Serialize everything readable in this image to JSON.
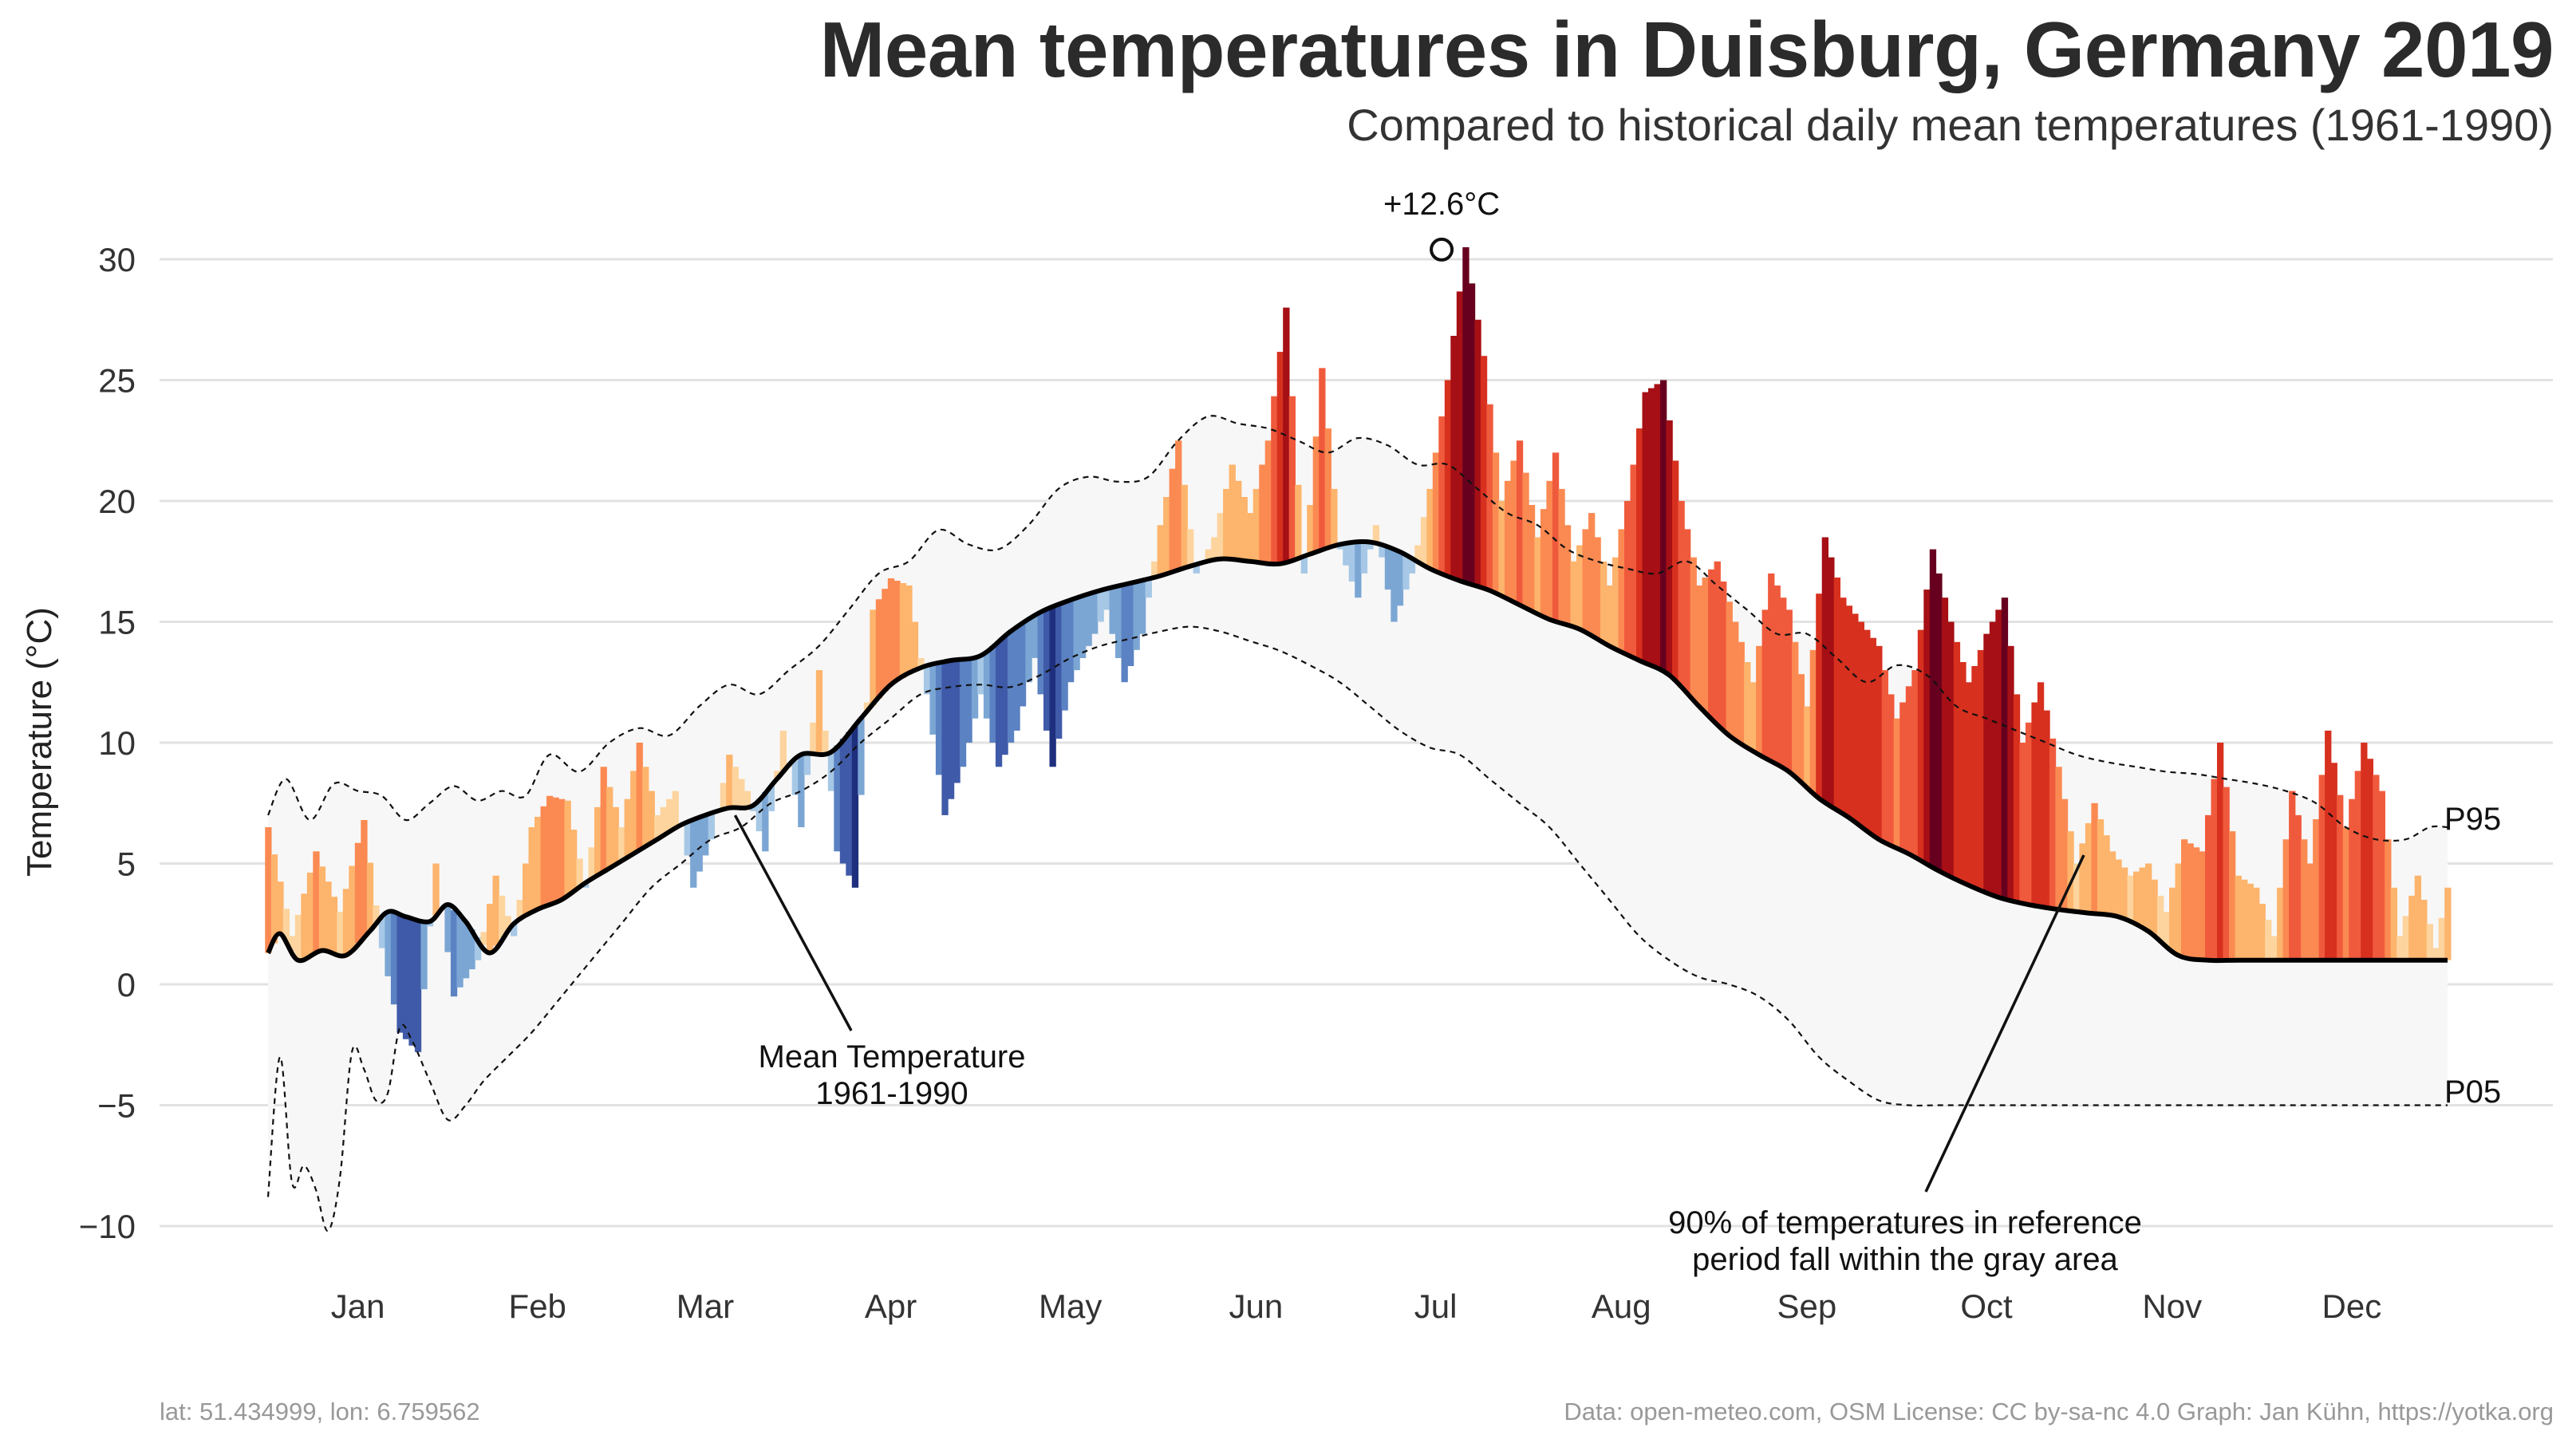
{
  "title": "Mean temperatures in Duisburg, Germany 2019",
  "subtitle": "Compared to historical daily mean temperatures (1961-1990)",
  "footer": {
    "location": "lat: 51.434999, lon: 6.759562",
    "credits": "Data: open-meteo.com, OSM  License: CC by-sa-nc 4.0  Graph: Jan Kühn, https://yotka.org"
  },
  "chart_data": {
    "type": "area",
    "ylabel": "Temperature (°C)",
    "ylim": [
      -10,
      32
    ],
    "yticks": [
      30,
      25,
      20,
      15,
      10,
      5,
      0,
      -5,
      -10
    ],
    "ytick_labels": [
      "30",
      "25",
      "20",
      "15",
      "10",
      "5",
      "0",
      "−5",
      "−10"
    ],
    "x_domain_days": [
      1,
      365
    ],
    "month_labels": [
      "Jan",
      "Feb",
      "Mar",
      "Apr",
      "May",
      "Jun",
      "Jul",
      "Aug",
      "Sep",
      "Oct",
      "Nov",
      "Dec"
    ],
    "month_label_days": [
      16,
      46,
      74,
      105,
      135,
      166,
      196,
      227,
      258,
      288,
      319,
      349
    ],
    "grid": true,
    "legend": "none",
    "series_2019_day": [
      1,
      5,
      9,
      13,
      17,
      20,
      23,
      26,
      29,
      32,
      36,
      39,
      42,
      45,
      48,
      51,
      54,
      57,
      60,
      63,
      66,
      69,
      72,
      75,
      78,
      81,
      84,
      87,
      90,
      93,
      96,
      99,
      102,
      105,
      108,
      111,
      114,
      117,
      120,
      123,
      126,
      129,
      132,
      135,
      138,
      141,
      144,
      147,
      150,
      153,
      156,
      159,
      162,
      165,
      168,
      171,
      174,
      177,
      180,
      183,
      186,
      189,
      192,
      195,
      198,
      201,
      204,
      207,
      210,
      213,
      216,
      219,
      222,
      225,
      228,
      231,
      234,
      237,
      240,
      243,
      246,
      249,
      252,
      255,
      258,
      261,
      264,
      267,
      270,
      273,
      276,
      279,
      282,
      285,
      288,
      291,
      294,
      297,
      300,
      303,
      306,
      309,
      312,
      315,
      318,
      321,
      324,
      327,
      330,
      333,
      336,
      339,
      342,
      345,
      348,
      351,
      354,
      357,
      360,
      363,
      365
    ],
    "series_2019_temp": [
      6.5,
      2.0,
      5.5,
      3.0,
      6.8,
      1.5,
      -2.0,
      -2.8,
      5.0,
      -0.5,
      1.0,
      4.5,
      2.0,
      6.5,
      7.8,
      7.6,
      4.0,
      9.0,
      6.5,
      10.0,
      7.0,
      8.0,
      4.0,
      6.0,
      9.5,
      8.0,
      5.5,
      10.5,
      6.5,
      13.0,
      5.5,
      4.0,
      15.5,
      16.8,
      16.5,
      12.0,
      7.0,
      9.0,
      12.0,
      9.0,
      10.5,
      13.5,
      9.0,
      12.5,
      14.0,
      15.5,
      12.5,
      14.5,
      19.0,
      22.5,
      17.0,
      18.5,
      21.5,
      19.5,
      22.5,
      28.0,
      17.0,
      25.5,
      18.0,
      16.0,
      19.0,
      15.0,
      17.0,
      20.5,
      25.0,
      30.5,
      26.0,
      20.0,
      22.5,
      18.5,
      22.0,
      17.5,
      19.5,
      16.5,
      20.0,
      24.5,
      25.0,
      20.0,
      16.5,
      17.5,
      15.0,
      12.5,
      17.0,
      15.5,
      11.5,
      18.5,
      16.0,
      15.0,
      14.0,
      11.0,
      13.0,
      18.0,
      15.0,
      12.5,
      14.5,
      16.0,
      10.0,
      12.5,
      9.0,
      5.0,
      7.5,
      5.5,
      4.5,
      5.0,
      3.0,
      6.0,
      5.5,
      10.0,
      4.5,
      4.0,
      2.0,
      8.0,
      5.0,
      10.5,
      6.5,
      10.0,
      8.0,
      2.0,
      4.5,
      1.5,
      4.0
    ],
    "mean_1961_1990_day": [
      1,
      3,
      6,
      10,
      14,
      18,
      21,
      24,
      28,
      31,
      34,
      38,
      42,
      46,
      50,
      54,
      58,
      62,
      66,
      70,
      74,
      78,
      82,
      86,
      90,
      95,
      100,
      105,
      110,
      115,
      120,
      125,
      130,
      135,
      140,
      145,
      150,
      155,
      160,
      165,
      170,
      175,
      180,
      185,
      190,
      195,
      200,
      205,
      210,
      215,
      220,
      225,
      230,
      235,
      240,
      245,
      250,
      255,
      260,
      265,
      270,
      275,
      280,
      285,
      290,
      295,
      300,
      305,
      310,
      315,
      320,
      325,
      330,
      335,
      340,
      345,
      350,
      355,
      360,
      363,
      365
    ],
    "mean_1961_1990": [
      1.3,
      2.1,
      1.0,
      1.4,
      1.2,
      2.2,
      3.0,
      2.8,
      2.6,
      3.3,
      2.6,
      1.3,
      2.5,
      3.1,
      3.5,
      4.2,
      4.8,
      5.4,
      6.0,
      6.6,
      7.0,
      7.3,
      7.4,
      8.5,
      9.5,
      9.6,
      11.0,
      12.4,
      13.1,
      13.4,
      13.6,
      14.6,
      15.4,
      15.9,
      16.3,
      16.6,
      16.9,
      17.3,
      17.6,
      17.5,
      17.4,
      17.8,
      18.2,
      18.3,
      17.9,
      17.2,
      16.7,
      16.3,
      15.7,
      15.1,
      14.7,
      14.0,
      13.4,
      12.8,
      11.5,
      10.3,
      9.5,
      8.8,
      7.7,
      6.9,
      6.0,
      5.4,
      4.7,
      4.1,
      3.6,
      3.3,
      3.1,
      2.95,
      2.8,
      2.2,
      1.2,
      1.0,
      1.0,
      1.0,
      1.0,
      1.0,
      1.0,
      1.0,
      1.0,
      1.0,
      1.0
    ],
    "p95_day": [
      1,
      4,
      8,
      12,
      16,
      20,
      24,
      28,
      32,
      36,
      40,
      44,
      48,
      53,
      58,
      63,
      68,
      73,
      78,
      83,
      88,
      93,
      98,
      103,
      108,
      113,
      118,
      123,
      128,
      133,
      138,
      143,
      148,
      153,
      158,
      163,
      168,
      173,
      178,
      183,
      188,
      193,
      198,
      203,
      208,
      213,
      218,
      223,
      228,
      233,
      238,
      243,
      248,
      253,
      258,
      263,
      268,
      273,
      278,
      283,
      288,
      293,
      298,
      303,
      308,
      313,
      318,
      323,
      328,
      333,
      338,
      343,
      348,
      353,
      358,
      362,
      365
    ],
    "p95": [
      7.0,
      8.5,
      6.8,
      8.3,
      8.0,
      7.8,
      6.8,
      7.5,
      8.2,
      7.6,
      8.0,
      7.8,
      9.5,
      8.8,
      10.0,
      10.6,
      10.3,
      11.5,
      12.4,
      12.0,
      13.0,
      14.0,
      15.5,
      17.0,
      17.5,
      18.8,
      18.2,
      18.0,
      19.0,
      20.5,
      21.0,
      20.8,
      21.0,
      22.5,
      23.5,
      23.2,
      23.0,
      22.5,
      22.0,
      22.6,
      22.3,
      21.5,
      21.5,
      20.5,
      19.5,
      19.0,
      18.0,
      17.5,
      17.2,
      17.0,
      17.5,
      16.5,
      15.5,
      14.5,
      14.5,
      13.5,
      12.5,
      13.2,
      12.8,
      11.5,
      11.0,
      10.5,
      10.0,
      9.5,
      9.2,
      9.0,
      8.8,
      8.7,
      8.5,
      8.3,
      8.0,
      7.5,
      6.5,
      6.0,
      6.0,
      6.5,
      6.5
    ],
    "p05_day": [
      1,
      3,
      5,
      7,
      9,
      11,
      13,
      15,
      17,
      19,
      21,
      23,
      25,
      28,
      31,
      34,
      37,
      41,
      45,
      50,
      55,
      60,
      65,
      70,
      75,
      80,
      85,
      90,
      95,
      100,
      105,
      110,
      115,
      120,
      125,
      130,
      135,
      140,
      145,
      150,
      155,
      160,
      165,
      170,
      175,
      180,
      185,
      190,
      195,
      200,
      205,
      210,
      215,
      220,
      225,
      230,
      235,
      240,
      245,
      250,
      255,
      260,
      265,
      270,
      275,
      280,
      285,
      290,
      295,
      300,
      305,
      310,
      315,
      320,
      325,
      330,
      335,
      340,
      345,
      350,
      355,
      360,
      363,
      365
    ],
    "p05": [
      -8.8,
      -3.0,
      -8.2,
      -7.5,
      -8.5,
      -10.2,
      -8.0,
      -2.8,
      -3.5,
      -4.8,
      -4.5,
      -1.8,
      -2.3,
      -4.0,
      -5.6,
      -5.0,
      -4.0,
      -3.0,
      -2.0,
      -0.5,
      1.0,
      2.5,
      4.0,
      5.0,
      6.0,
      6.5,
      7.5,
      8.0,
      8.8,
      10.0,
      11.0,
      12.0,
      12.3,
      12.4,
      12.3,
      12.8,
      13.5,
      14.0,
      14.3,
      14.6,
      14.8,
      14.6,
      14.2,
      13.8,
      13.2,
      12.5,
      11.5,
      10.5,
      9.8,
      9.5,
      8.5,
      7.5,
      6.5,
      5.0,
      3.5,
      2.0,
      1.0,
      0.3,
      0.0,
      -0.5,
      -1.5,
      -3.0,
      -4.0,
      -4.8,
      -5.0,
      -5.0,
      -5.0,
      -5.0,
      -5.0,
      -5.0,
      -5.0,
      -5.0,
      -5.0,
      -5.0,
      -5.0,
      -5.0,
      -5.0,
      -5.0,
      -5.0,
      -5.0,
      -5.0,
      -5.0,
      -5.0,
      -5.0
    ],
    "annotations": {
      "max_anomaly": {
        "label": "+12.6°C",
        "day": 197,
        "temp": 30.4
      },
      "mean_label": [
        "Mean Temperature",
        "1961-1990"
      ],
      "band_label": [
        "90% of temperatures in reference",
        "period fall within the gray area"
      ],
      "p95_label": "P95",
      "p05_label": "P05"
    },
    "colors": {
      "band": "#f7f7f7",
      "grid": "#e2e2e2",
      "mean_line": "#000000",
      "warm": [
        "#fdd49e",
        "#fdb46c",
        "#fb8a52",
        "#f05a3c",
        "#d7301f",
        "#a50f15",
        "#67001f"
      ],
      "cold": [
        "#a6c8e6",
        "#7ba6d4",
        "#5b82c2",
        "#3f5aa8",
        "#1e2f7d"
      ]
    }
  }
}
